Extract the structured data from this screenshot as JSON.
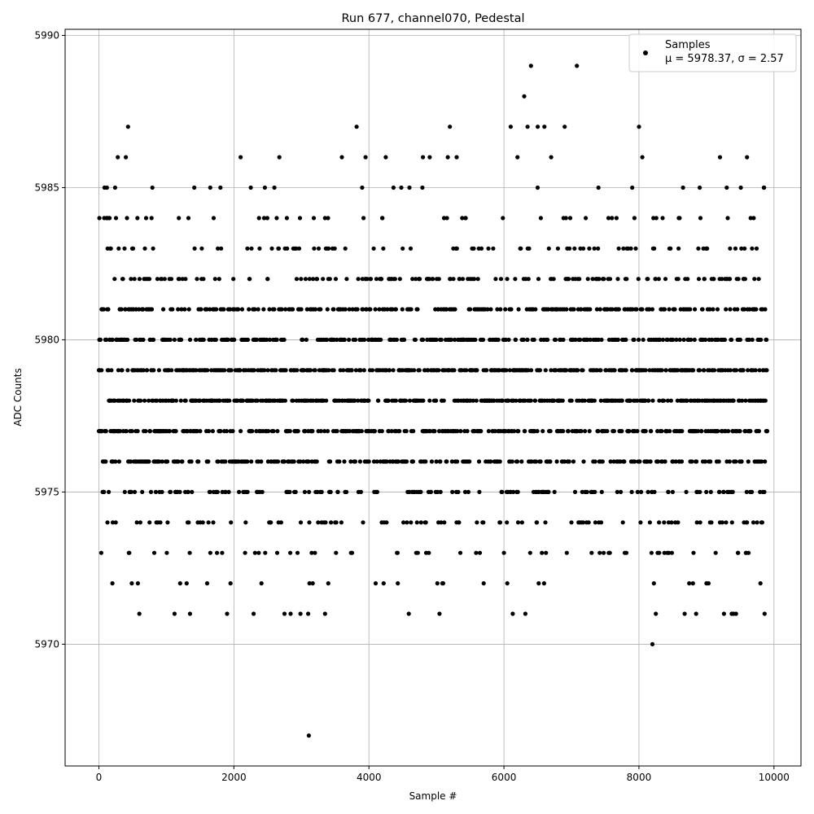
{
  "chart_data": {
    "type": "scatter",
    "title": "Run 677, channel070, Pedestal",
    "xlabel": "Sample #",
    "ylabel": "ADC Counts",
    "xlim": [
      -500,
      10400
    ],
    "ylim": [
      5966,
      5990.2
    ],
    "xticks": [
      0,
      2000,
      4000,
      6000,
      8000,
      10000
    ],
    "xtick_labels": [
      "0",
      "2000",
      "4000",
      "6000",
      "8000",
      "10000"
    ],
    "yticks": [
      5970,
      5975,
      5980,
      5985,
      5990
    ],
    "ytick_labels": [
      "5970",
      "5975",
      "5980",
      "5985",
      "5990"
    ],
    "grid": true,
    "legend_position": "top-right",
    "marker_color": "#000000",
    "series": [
      {
        "name": "Samples",
        "stats_label": "μ = 5978.37, σ = 2.57",
        "mean": 5978.37,
        "std": 2.57,
        "n_samples": 10000,
        "x_start": 0,
        "x_end": 9900,
        "x": [
          0,
          8,
          40,
          72,
          100,
          130,
          160,
          200,
          240,
          280,
          300,
          350,
          400,
          450,
          500,
          550,
          600,
          650,
          700,
          750,
          800,
          900,
          1000,
          1120,
          1200,
          1300,
          1350,
          1400,
          1500,
          1600,
          1650,
          1700,
          1750,
          1800,
          1900,
          1950,
          2000,
          2100,
          2200,
          2250,
          2300,
          2400,
          2500,
          2600,
          2700,
          2750,
          2800,
          2900,
          3000,
          3100,
          3110,
          3120,
          3150,
          3200,
          3300,
          3350,
          3400,
          3500,
          3600,
          3650,
          3700,
          3800,
          3900,
          3950,
          4000,
          4100,
          4200,
          4250,
          4300,
          4400,
          4500,
          4600,
          4700,
          4800,
          4900,
          5000,
          5100,
          5200,
          5250,
          5300,
          5400,
          5500,
          5600,
          5700,
          5800,
          5900,
          6000,
          6050,
          6100,
          6200,
          6300,
          6350,
          6400,
          6500,
          6600,
          6700,
          6800,
          6900,
          7000,
          7080,
          7200,
          7300,
          7400,
          7500,
          7600,
          7700,
          7800,
          7900,
          8000,
          8050,
          8100,
          8200,
          8250,
          8300,
          8350,
          8400,
          8500,
          8600,
          8700,
          8800,
          8900,
          9000,
          9100,
          9200,
          9300,
          9350,
          9400,
          9500,
          9600,
          9700,
          9800,
          9850,
          9900
        ],
        "y": [
          5977,
          5984,
          5981,
          5975,
          5976,
          5983,
          5980,
          5972,
          5985,
          5986,
          5978,
          5982,
          5986,
          5973,
          5979,
          5981,
          5971,
          5976,
          5984,
          5974,
          5980,
          5977,
          5978,
          5971,
          5975,
          5972,
          5971,
          5979,
          5977,
          5981,
          5985,
          5984,
          5973,
          5985,
          5971,
          5972,
          5976,
          5986,
          5983,
          5985,
          5980,
          5978,
          5982,
          5985,
          5974,
          5971,
          5977,
          5983,
          5979,
          5971,
          5967,
          5972,
          5981,
          5976,
          5975,
          5971,
          5982,
          5974,
          5986,
          5983,
          5978,
          5980,
          5985,
          5986,
          5977,
          5972,
          5984,
          5986,
          5979,
          5981,
          5983,
          5985,
          5973,
          5986,
          5986,
          5980,
          5972,
          5987,
          5983,
          5986,
          5978,
          5981,
          5974,
          5972,
          5976,
          5979,
          5973,
          5972,
          5987,
          5986,
          5988,
          5987,
          5989,
          5987,
          5987,
          5986,
          5983,
          5987,
          5974,
          5989,
          5980,
          5975,
          5985,
          5981,
          5984,
          5983,
          5982,
          5985,
          5987,
          5986,
          5977,
          5970,
          5971,
          5973,
          5984,
          5979,
          5975,
          5976,
          5981,
          5972,
          5985,
          5972,
          5978,
          5986,
          5985,
          5983,
          5971,
          5979,
          5986,
          5984,
          5972,
          5985,
          5977
        ]
      }
    ]
  }
}
